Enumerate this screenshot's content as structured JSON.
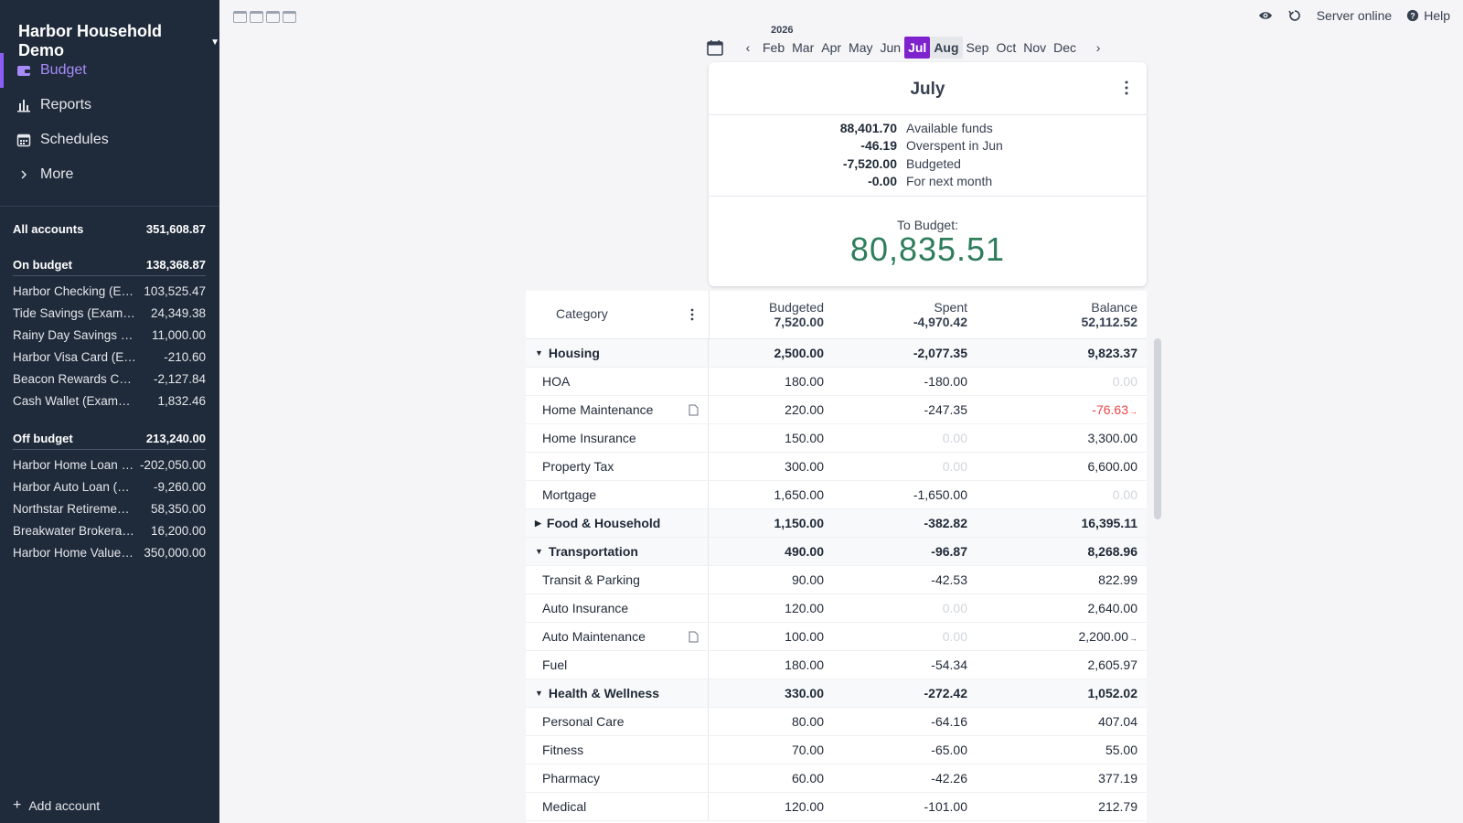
{
  "sidebar": {
    "title": "Harbor Household Demo",
    "nav": [
      "Budget",
      "Reports",
      "Schedules",
      "More"
    ],
    "all_accounts": {
      "name": "All accounts",
      "balance": "351,608.87"
    },
    "on_budget": {
      "name": "On budget",
      "balance": "138,368.87",
      "accounts": [
        {
          "name": "Harbor Checking (Example)",
          "balance": "103,525.47"
        },
        {
          "name": "Tide Savings (Example)",
          "balance": "24,349.38"
        },
        {
          "name": "Rainy Day Savings (Example)",
          "balance": "11,000.00"
        },
        {
          "name": "Harbor Visa Card (Example)",
          "balance": "-210.60"
        },
        {
          "name": "Beacon Rewards Card (Example)",
          "balance": "-2,127.84"
        },
        {
          "name": "Cash Wallet (Example)",
          "balance": "1,832.46"
        }
      ]
    },
    "off_budget": {
      "name": "Off budget",
      "balance": "213,240.00",
      "accounts": [
        {
          "name": "Harbor Home Loan (Example)",
          "balance": "-202,050.00"
        },
        {
          "name": "Harbor Auto Loan (Example)",
          "balance": "-9,260.00"
        },
        {
          "name": "Northstar Retirement (Example)",
          "balance": "58,350.00"
        },
        {
          "name": "Breakwater Brokerage (Example)",
          "balance": "16,200.00"
        },
        {
          "name": "Harbor Home Value (Example)",
          "balance": "350,000.00"
        }
      ]
    },
    "add_account": "Add account"
  },
  "topbar": {
    "server_status": "Server online",
    "help": "Help"
  },
  "month_picker": {
    "year": "2026",
    "months": [
      "Feb",
      "Mar",
      "Apr",
      "May",
      "Jun",
      "Jul",
      "Aug",
      "Sep",
      "Oct",
      "Nov",
      "Dec"
    ],
    "selected": "Jul"
  },
  "summary": {
    "month": "July",
    "rows": [
      {
        "value": "88,401.70",
        "label": "Available funds"
      },
      {
        "value": "-46.19",
        "label": "Overspent in Jun"
      },
      {
        "value": "-7,520.00",
        "label": "Budgeted"
      },
      {
        "value": "-0.00",
        "label": "For next month"
      }
    ],
    "to_budget_label": "To Budget:",
    "to_budget_value": "80,835.51"
  },
  "table": {
    "header": {
      "category": "Category",
      "budgeted_label": "Budgeted",
      "budgeted_total": "7,520.00",
      "spent_label": "Spent",
      "spent_total": "-4,970.42",
      "balance_label": "Balance",
      "balance_total": "52,112.52"
    },
    "rows": [
      {
        "type": "group",
        "name": "Housing",
        "expanded": true,
        "budgeted": "2,500.00",
        "spent": "-2,077.35",
        "balance": "9,823.37"
      },
      {
        "type": "cat",
        "name": "HOA",
        "budgeted": "180.00",
        "spent": "-180.00",
        "balance": "0.00"
      },
      {
        "type": "cat",
        "name": "Home Maintenance",
        "note": true,
        "budgeted": "220.00",
        "spent": "-247.35",
        "balance": "-76.63",
        "balance_state": "negative"
      },
      {
        "type": "cat",
        "name": "Home Insurance",
        "budgeted": "150.00",
        "spent": "0.00",
        "balance": "3,300.00"
      },
      {
        "type": "cat",
        "name": "Property Tax",
        "budgeted": "300.00",
        "spent": "0.00",
        "balance": "6,600.00"
      },
      {
        "type": "cat",
        "name": "Mortgage",
        "budgeted": "1,650.00",
        "spent": "-1,650.00",
        "balance": "0.00"
      },
      {
        "type": "group",
        "name": "Food & Household",
        "expanded": false,
        "budgeted": "1,150.00",
        "spent": "-382.82",
        "balance": "16,395.11"
      },
      {
        "type": "group",
        "name": "Transportation",
        "expanded": true,
        "budgeted": "490.00",
        "spent": "-96.87",
        "balance": "8,268.96"
      },
      {
        "type": "cat",
        "name": "Transit & Parking",
        "budgeted": "90.00",
        "spent": "-42.53",
        "balance": "822.99"
      },
      {
        "type": "cat",
        "name": "Auto Insurance",
        "budgeted": "120.00",
        "spent": "0.00",
        "balance": "2,640.00"
      },
      {
        "type": "cat",
        "name": "Auto Maintenance",
        "note": true,
        "budgeted": "100.00",
        "spent": "0.00",
        "balance": "2,200.00",
        "balance_state": "rollover"
      },
      {
        "type": "cat",
        "name": "Fuel",
        "budgeted": "180.00",
        "spent": "-54.34",
        "balance": "2,605.97"
      },
      {
        "type": "group",
        "name": "Health & Wellness",
        "expanded": true,
        "budgeted": "330.00",
        "spent": "-272.42",
        "balance": "1,052.02"
      },
      {
        "type": "cat",
        "name": "Personal Care",
        "budgeted": "80.00",
        "spent": "-64.16",
        "balance": "407.04"
      },
      {
        "type": "cat",
        "name": "Fitness",
        "budgeted": "70.00",
        "spent": "-65.00",
        "balance": "55.00"
      },
      {
        "type": "cat",
        "name": "Pharmacy",
        "budgeted": "60.00",
        "spent": "-42.26",
        "balance": "377.19"
      },
      {
        "type": "cat",
        "name": "Medical",
        "budgeted": "120.00",
        "spent": "-101.00",
        "balance": "212.79"
      }
    ]
  },
  "colors": {
    "accent": "#7e22ce",
    "sidebar_bg": "#1f2a3a",
    "to_budget": "#2e7d5b",
    "negative": "#ef4444"
  }
}
